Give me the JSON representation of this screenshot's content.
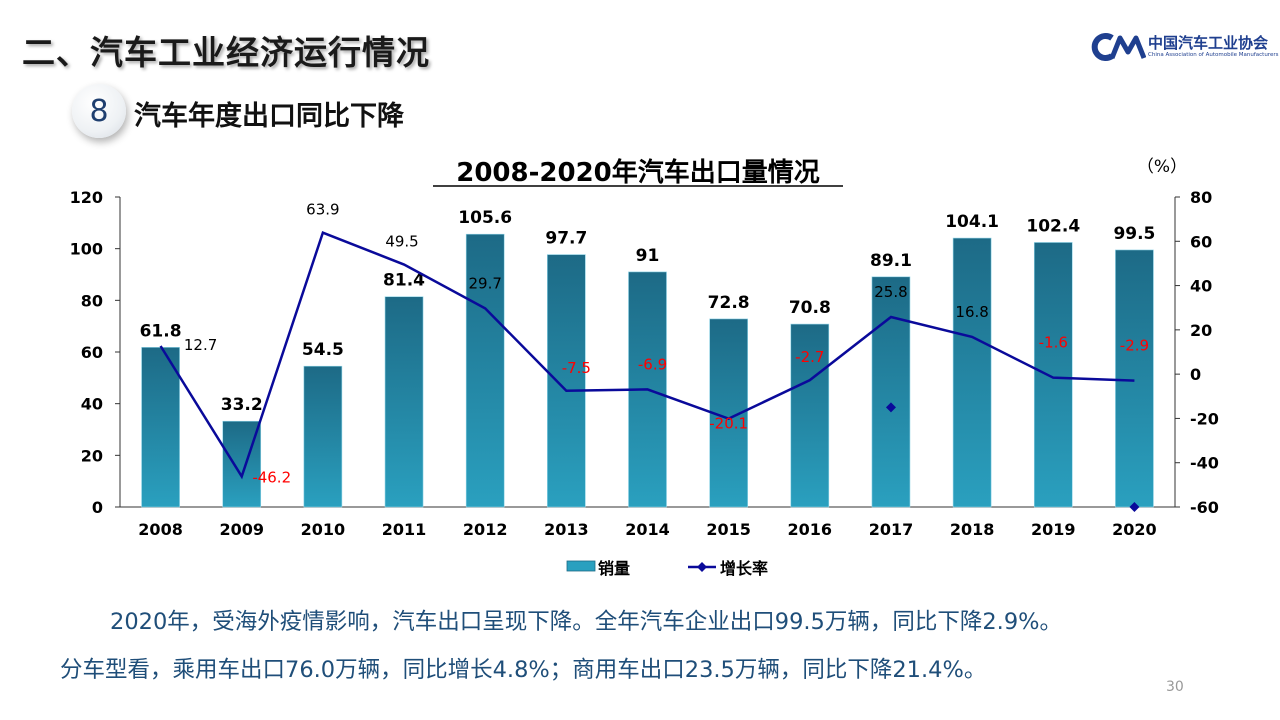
{
  "section_title": "二、汽车工业经济运行情况",
  "logo": {
    "name_cn": "中国汽车工业协会",
    "name_en": "China Association of Automobile Manufacturers",
    "mark_icon": "caam-logo-icon"
  },
  "topic": {
    "number": "8",
    "title": "汽车年度出口同比下降"
  },
  "colors": {
    "bar": "#2aa0bf",
    "bar_dark": "#1d6a86",
    "line": "#0a0a9a",
    "negative_label": "#ff0000",
    "text": "#000000"
  },
  "chart_data": {
    "type": "bar+line",
    "title": "2008-2020年汽车出口量情况",
    "right_axis_unit": "（%）",
    "categories": [
      "2008",
      "2009",
      "2010",
      "2011",
      "2012",
      "2013",
      "2014",
      "2015",
      "2016",
      "2017",
      "2018",
      "2019",
      "2020"
    ],
    "series": [
      {
        "name": "销量",
        "type": "bar",
        "axis": "left",
        "values": [
          61.8,
          33.2,
          54.5,
          81.4,
          105.6,
          97.7,
          91,
          72.8,
          70.8,
          89.1,
          104.1,
          102.4,
          99.5
        ],
        "labels": [
          "61.8",
          "33.2",
          "54.5",
          "81.4",
          "105.6",
          "97.7",
          "91",
          "72.8",
          "70.8",
          "89.1",
          "104.1",
          "102.4",
          "99.5"
        ]
      },
      {
        "name": "增长率",
        "type": "line",
        "axis": "right",
        "values": [
          12.7,
          -46.2,
          63.9,
          49.5,
          29.7,
          -7.5,
          -6.9,
          -20.1,
          -2.7,
          25.8,
          16.8,
          -1.6,
          -2.9
        ],
        "labels": [
          "12.7",
          "-46.2",
          "63.9",
          "49.5",
          "29.7",
          "-7.5",
          "-6.9",
          "-20.1",
          "-2.7",
          "25.8",
          "16.8",
          "-1.6",
          "-2.9"
        ]
      }
    ],
    "stray_markers": [
      {
        "category": "2017",
        "value": -15
      },
      {
        "category": "2020",
        "value": -60
      }
    ],
    "left_axis": {
      "min": 0,
      "max": 120,
      "ticks": [
        "0",
        "20",
        "40",
        "60",
        "80",
        "100",
        "120"
      ]
    },
    "right_axis": {
      "min": -60,
      "max": 80,
      "ticks": [
        "-60",
        "-40",
        "-20",
        "0",
        "20",
        "40",
        "60",
        "80"
      ]
    },
    "legend": [
      {
        "label": "销量",
        "kind": "bar"
      },
      {
        "label": "增长率",
        "kind": "line"
      }
    ],
    "legend_position": "bottom"
  },
  "summary": [
    "2020年，受海外疫情影响，汽车出口呈现下降。全年汽车企业出口99.5万辆，同比下降2.9%。",
    "分车型看，乘用车出口76.0万辆，同比增长4.8%；商用车出口23.5万辆，同比下降21.4%。"
  ],
  "page_number": "30"
}
